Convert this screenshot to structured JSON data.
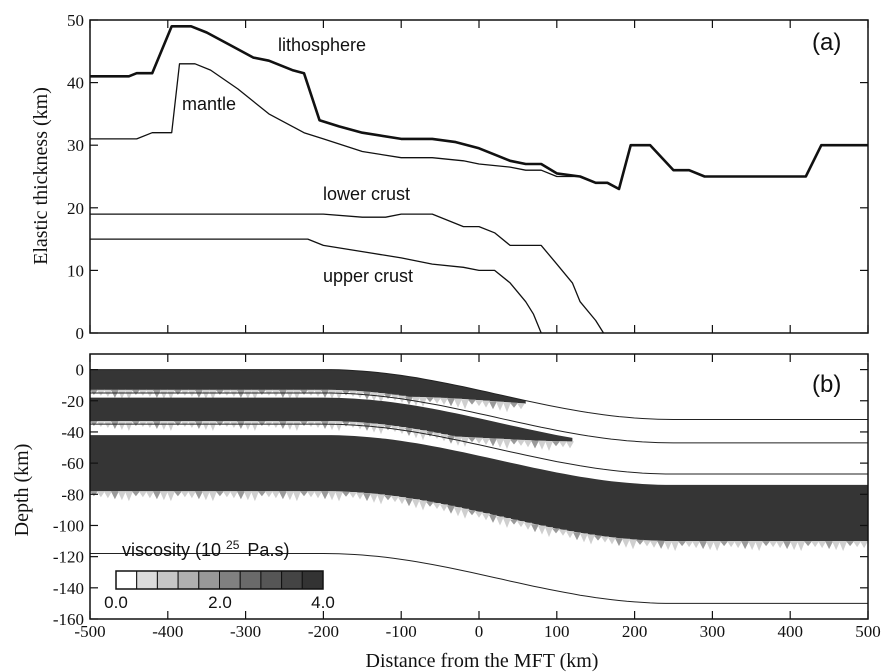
{
  "chart_data": [
    {
      "type": "line",
      "panel_label": "(a)",
      "ylabel": "Elastic thickness (km)",
      "xlim": [
        -500,
        500
      ],
      "ylim": [
        0,
        50
      ],
      "yticks": [
        0,
        10,
        20,
        30,
        40,
        50
      ],
      "series": [
        {
          "name": "lithosphere",
          "bold": true,
          "x": [
            -500,
            -450,
            -440,
            -420,
            -395,
            -385,
            -370,
            -350,
            -320,
            -290,
            -270,
            -240,
            -225,
            -205,
            -180,
            -150,
            -100,
            -60,
            -30,
            0,
            20,
            40,
            60,
            80,
            100,
            130,
            150,
            165,
            180,
            195,
            210,
            220,
            250,
            270,
            290,
            320,
            350,
            380,
            420,
            440,
            460,
            500
          ],
          "y": [
            41,
            41,
            41.5,
            41.5,
            49,
            49,
            49,
            48,
            46,
            44,
            43.5,
            42,
            41.5,
            34,
            33,
            32,
            31,
            31,
            30.5,
            29.5,
            28.5,
            27.5,
            27,
            27,
            25.5,
            25,
            24,
            24,
            23,
            30,
            30,
            30,
            26,
            26,
            25,
            25,
            25,
            25,
            25,
            30,
            30,
            30
          ]
        },
        {
          "name": "mantle",
          "x": [
            -500,
            -440,
            -420,
            -395,
            -385,
            -365,
            -345,
            -310,
            -270,
            -240,
            -225,
            -200,
            -150,
            -100,
            -60,
            -20,
            0,
            40,
            60,
            80,
            100,
            130,
            150,
            165,
            180
          ],
          "y": [
            31,
            31,
            32,
            32,
            43,
            43,
            42,
            39,
            35,
            33,
            32,
            31,
            29,
            28,
            28,
            27.5,
            27,
            26.5,
            26,
            26,
            25,
            25,
            24,
            24,
            23
          ]
        },
        {
          "name": "lower crust",
          "x": [
            -500,
            -240,
            -200,
            -150,
            -120,
            -100,
            -60,
            -20,
            0,
            20,
            40,
            60,
            80,
            100,
            120,
            130,
            150,
            160
          ],
          "y": [
            19,
            19,
            19,
            18.5,
            18.5,
            19,
            19,
            17,
            17,
            16,
            14,
            14,
            14,
            11,
            8,
            5,
            2,
            0
          ]
        },
        {
          "name": "upper crust",
          "x": [
            -500,
            -220,
            -200,
            -150,
            -100,
            -60,
            -20,
            0,
            20,
            40,
            60,
            70,
            80
          ],
          "y": [
            15,
            15,
            14,
            13,
            12,
            11,
            10.5,
            10,
            10,
            8,
            5,
            3,
            0
          ]
        }
      ],
      "labels": {
        "lithosphere": "lithosphere",
        "mantle": "mantle",
        "lower_crust": "lower crust",
        "upper_crust": "upper crust"
      }
    },
    {
      "type": "heatmap",
      "panel_label": "(b)",
      "xlabel": "Distance from the MFT (km)",
      "ylabel": "Depth (km)",
      "xlim": [
        -500,
        500
      ],
      "ylim": [
        -160,
        10
      ],
      "xticks": [
        -500,
        -400,
        -300,
        -200,
        -100,
        0,
        100,
        200,
        300,
        400,
        500
      ],
      "yticks": [
        0,
        -20,
        -40,
        -60,
        -80,
        -100,
        -120,
        -140,
        -160
      ],
      "layer_boundaries": [
        {
          "name": "top",
          "offset": 0
        },
        {
          "name": "upper crust base",
          "offset": -15
        },
        {
          "name": "lower crust base",
          "offset": -35
        },
        {
          "name": "lithosphere base",
          "offset": -118
        }
      ],
      "flexure": {
        "x_start": -200,
        "x_end": 250,
        "depth_drop": 32
      },
      "high_viscosity_bands": [
        {
          "top": 0,
          "bottom": -13,
          "x_end": 60
        },
        {
          "top": -18,
          "bottom": -33,
          "x_end": 120
        },
        {
          "top": -42,
          "bottom": -78,
          "x_end": 500
        }
      ],
      "colorbar": {
        "title": "viscosity (10 25 Pa.s)",
        "title_text": "viscosity (10",
        "title_exp": "25",
        "title_unit": "Pa.s)",
        "range": [
          0.0,
          4.0
        ],
        "levels": [
          "#ffffff",
          "#dcdcdc",
          "#c6c6c6",
          "#b0b0b0",
          "#989898",
          "#808080",
          "#6a6a6a",
          "#565656",
          "#444444",
          "#333333"
        ],
        "tick_labels": [
          "0.0",
          "2.0",
          "4.0"
        ]
      },
      "colors": {
        "dark": "#353535",
        "mid": "#9a9a9a",
        "light": "#cfcfcf"
      }
    }
  ]
}
